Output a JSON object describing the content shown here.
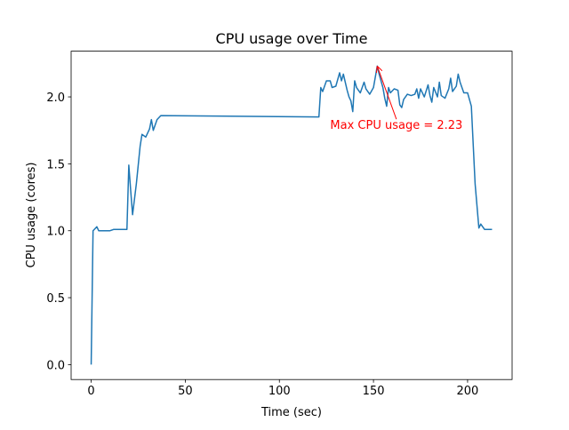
{
  "chart_data": {
    "type": "line",
    "title": "CPU usage over Time",
    "xlabel": "Time (sec)",
    "ylabel": "CPU usage (cores)",
    "color": "#1f77b4",
    "x": [
      0,
      1,
      3,
      4,
      10,
      12,
      19,
      20,
      21,
      22,
      24,
      26,
      27,
      29,
      31,
      32,
      33,
      35,
      37,
      120,
      121,
      122,
      123,
      125,
      127,
      128,
      130,
      132,
      133,
      134,
      136,
      137,
      138,
      139,
      140,
      141,
      143,
      145,
      146,
      148,
      150,
      152,
      153,
      155,
      156,
      157,
      158,
      159,
      161,
      163,
      164,
      165,
      166,
      168,
      170,
      172,
      173,
      174,
      175,
      177,
      179,
      180,
      181,
      182,
      184,
      185,
      186,
      188,
      190,
      191,
      192,
      194,
      195,
      196,
      198,
      200,
      202,
      204,
      206,
      207,
      209,
      213
    ],
    "values": [
      0,
      1.0,
      1.03,
      1.0,
      1.0,
      1.01,
      1.01,
      1.49,
      1.3,
      1.12,
      1.35,
      1.63,
      1.72,
      1.7,
      1.76,
      1.83,
      1.75,
      1.83,
      1.86,
      1.85,
      1.85,
      2.07,
      2.04,
      2.12,
      2.12,
      2.07,
      2.08,
      2.18,
      2.12,
      2.17,
      2.05,
      2.0,
      1.97,
      1.89,
      2.12,
      2.07,
      2.03,
      2.11,
      2.06,
      2.02,
      2.07,
      2.23,
      2.17,
      2.07,
      1.99,
      1.93,
      2.07,
      2.03,
      2.06,
      2.05,
      1.94,
      1.92,
      1.98,
      2.02,
      2.01,
      2.02,
      2.06,
      1.99,
      2.06,
      2.0,
      2.09,
      2.01,
      1.96,
      2.07,
      2.0,
      2.11,
      2.01,
      1.99,
      2.06,
      2.14,
      2.04,
      2.08,
      2.17,
      2.11,
      2.03,
      2.03,
      1.93,
      1.35,
      1.02,
      1.05,
      1.01,
      1.01
    ],
    "xlim": [
      -10.65,
      223.65
    ],
    "ylim": [
      -0.1115,
      2.3415
    ],
    "xticks": [
      0,
      50,
      100,
      150,
      200
    ],
    "yticks": [
      {
        "value": 0,
        "label": "0.0"
      },
      {
        "value": 0.5,
        "label": "0.5"
      },
      {
        "value": 1,
        "label": "1.0"
      },
      {
        "value": 1.5,
        "label": "1.5"
      },
      {
        "value": 2,
        "label": "2.0"
      }
    ],
    "annotation": {
      "text": "Max CPU usage = 2.23",
      "xy": [
        152,
        2.23
      ],
      "xytext": [
        127,
        1.76
      ],
      "color": "red"
    }
  }
}
